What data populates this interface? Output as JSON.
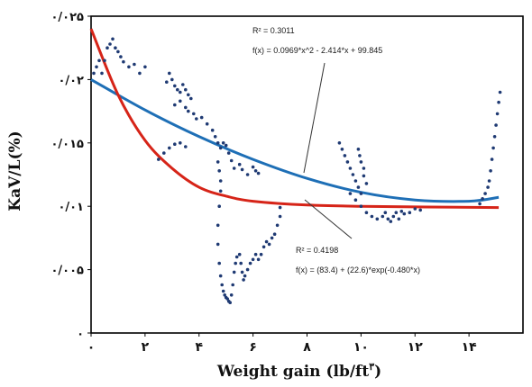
{
  "chart_data": {
    "type": "scatter",
    "xlabel_main": "Weight gain (lb/ft",
    "xlabel_sup": "۳",
    "xlabel_end": ")",
    "ylabel": "KaV/L(%)",
    "xlim": [
      0,
      16
    ],
    "ylim": [
      0,
      0.025
    ],
    "xticks": [
      {
        "value": 0,
        "label": "۰"
      },
      {
        "value": 2,
        "label": "۲"
      },
      {
        "value": 4,
        "label": "۴"
      },
      {
        "value": 6,
        "label": "۶"
      },
      {
        "value": 8,
        "label": "۸"
      },
      {
        "value": 10,
        "label": "۱۰"
      },
      {
        "value": 12,
        "label": "۱۲"
      },
      {
        "value": 14,
        "label": "۱۴"
      }
    ],
    "yticks": [
      {
        "value": 0,
        "label": "۰"
      },
      {
        "value": 0.005,
        "label": "۰/۰۰۵"
      },
      {
        "value": 0.01,
        "label": "۰/۰۱"
      },
      {
        "value": 0.015,
        "label": "۰/۰۱۵"
      },
      {
        "value": 0.02,
        "label": "۰/۰۲"
      },
      {
        "value": 0.025,
        "label": "۰/۰۲۵"
      }
    ],
    "grid": false,
    "colors": {
      "points": "#1f3a73",
      "blue_curve": "#1e6fb6",
      "red_curve": "#d62418"
    },
    "series": [
      {
        "kind": "points",
        "points": [
          [
            0.1,
            0.0205
          ],
          [
            0.2,
            0.021
          ],
          [
            0.3,
            0.0215
          ],
          [
            0.4,
            0.0205
          ],
          [
            0.5,
            0.0215
          ],
          [
            0.6,
            0.0225
          ],
          [
            0.7,
            0.0228
          ],
          [
            0.8,
            0.0232
          ],
          [
            0.9,
            0.0225
          ],
          [
            1.0,
            0.0222
          ],
          [
            1.1,
            0.0218
          ],
          [
            1.2,
            0.0214
          ],
          [
            1.4,
            0.021
          ],
          [
            1.6,
            0.0212
          ],
          [
            1.8,
            0.0205
          ],
          [
            2.0,
            0.021
          ],
          [
            2.8,
            0.0198
          ],
          [
            2.9,
            0.0205
          ],
          [
            3.0,
            0.02
          ],
          [
            3.1,
            0.0195
          ],
          [
            3.2,
            0.0192
          ],
          [
            3.3,
            0.019
          ],
          [
            3.4,
            0.0196
          ],
          [
            3.5,
            0.0192
          ],
          [
            3.6,
            0.0188
          ],
          [
            3.7,
            0.0185
          ],
          [
            3.1,
            0.018
          ],
          [
            3.3,
            0.0183
          ],
          [
            3.5,
            0.0178
          ],
          [
            3.6,
            0.0175
          ],
          [
            3.8,
            0.0173
          ],
          [
            3.9,
            0.0169
          ],
          [
            2.5,
            0.0137
          ],
          [
            2.7,
            0.0142
          ],
          [
            2.9,
            0.0146
          ],
          [
            3.1,
            0.0149
          ],
          [
            3.3,
            0.015
          ],
          [
            3.5,
            0.0147
          ],
          [
            4.1,
            0.017
          ],
          [
            4.3,
            0.0165
          ],
          [
            4.5,
            0.016
          ],
          [
            4.6,
            0.0155
          ],
          [
            4.7,
            0.015
          ],
          [
            4.8,
            0.0146
          ],
          [
            4.9,
            0.015
          ],
          [
            5.0,
            0.0148
          ],
          [
            5.1,
            0.0142
          ],
          [
            5.2,
            0.0136
          ],
          [
            5.3,
            0.013
          ],
          [
            5.5,
            0.0133
          ],
          [
            5.6,
            0.0129
          ],
          [
            5.8,
            0.0125
          ],
          [
            6.0,
            0.0131
          ],
          [
            6.1,
            0.0128
          ],
          [
            6.2,
            0.0126
          ],
          [
            4.7,
            0.0135
          ],
          [
            4.75,
            0.0128
          ],
          [
            4.8,
            0.012
          ],
          [
            4.8,
            0.0112
          ],
          [
            4.75,
            0.01
          ],
          [
            4.7,
            0.0085
          ],
          [
            4.7,
            0.007
          ],
          [
            4.75,
            0.0055
          ],
          [
            4.8,
            0.0045
          ],
          [
            4.85,
            0.0038
          ],
          [
            4.9,
            0.0033
          ],
          [
            4.95,
            0.003
          ],
          [
            5.0,
            0.0028
          ],
          [
            5.05,
            0.0027
          ],
          [
            5.1,
            0.0025
          ],
          [
            5.15,
            0.0024
          ],
          [
            5.2,
            0.003
          ],
          [
            5.25,
            0.0038
          ],
          [
            5.3,
            0.0048
          ],
          [
            5.35,
            0.0055
          ],
          [
            5.4,
            0.006
          ],
          [
            5.5,
            0.0062
          ],
          [
            5.55,
            0.0055
          ],
          [
            5.6,
            0.0048
          ],
          [
            5.65,
            0.0042
          ],
          [
            5.7,
            0.0045
          ],
          [
            5.8,
            0.005
          ],
          [
            5.9,
            0.0055
          ],
          [
            6.0,
            0.0058
          ],
          [
            6.1,
            0.0062
          ],
          [
            6.2,
            0.0058
          ],
          [
            6.3,
            0.0062
          ],
          [
            6.4,
            0.0068
          ],
          [
            6.5,
            0.0072
          ],
          [
            6.6,
            0.007
          ],
          [
            6.7,
            0.0075
          ],
          [
            6.8,
            0.0078
          ],
          [
            6.9,
            0.0085
          ],
          [
            7.0,
            0.0092
          ],
          [
            7.0,
            0.0099
          ],
          [
            9.2,
            0.015
          ],
          [
            9.3,
            0.0145
          ],
          [
            9.4,
            0.014
          ],
          [
            9.5,
            0.0135
          ],
          [
            9.6,
            0.013
          ],
          [
            9.7,
            0.0125
          ],
          [
            9.8,
            0.012
          ],
          [
            9.9,
            0.0115
          ],
          [
            10.0,
            0.011
          ],
          [
            9.9,
            0.0145
          ],
          [
            9.95,
            0.014
          ],
          [
            10.0,
            0.0135
          ],
          [
            10.1,
            0.013
          ],
          [
            10.1,
            0.0124
          ],
          [
            10.2,
            0.0118
          ],
          [
            9.6,
            0.011
          ],
          [
            9.8,
            0.0105
          ],
          [
            10.0,
            0.01
          ],
          [
            10.2,
            0.0095
          ],
          [
            10.4,
            0.0092
          ],
          [
            10.6,
            0.009
          ],
          [
            10.8,
            0.0092
          ],
          [
            10.9,
            0.0095
          ],
          [
            11.0,
            0.009
          ],
          [
            11.1,
            0.0088
          ],
          [
            11.2,
            0.0092
          ],
          [
            11.3,
            0.0095
          ],
          [
            11.4,
            0.009
          ],
          [
            11.5,
            0.0096
          ],
          [
            11.6,
            0.0094
          ],
          [
            11.8,
            0.0095
          ],
          [
            12.0,
            0.0098
          ],
          [
            12.2,
            0.0097
          ],
          [
            14.4,
            0.0102
          ],
          [
            14.5,
            0.0106
          ],
          [
            14.6,
            0.011
          ],
          [
            14.7,
            0.0115
          ],
          [
            14.75,
            0.012
          ],
          [
            14.8,
            0.0128
          ],
          [
            14.85,
            0.0137
          ],
          [
            14.9,
            0.0146
          ],
          [
            14.95,
            0.0155
          ],
          [
            15.0,
            0.0164
          ],
          [
            15.05,
            0.0173
          ],
          [
            15.1,
            0.0182
          ],
          [
            15.15,
            0.019
          ]
        ]
      },
      {
        "kind": "fit",
        "equation": "f(x) = 0.0969*x^2 - 2.414*x + 99.845",
        "r2_text": "R² = 0.3011",
        "color": "#1e6fb6",
        "curve": [
          [
            0,
            0.02
          ],
          [
            2,
            0.0176
          ],
          [
            4,
            0.0155
          ],
          [
            6,
            0.0137
          ],
          [
            8,
            0.0122
          ],
          [
            10,
            0.0111
          ],
          [
            12,
            0.0105
          ],
          [
            14,
            0.0104
          ],
          [
            15.1,
            0.0107
          ]
        ]
      },
      {
        "kind": "fit",
        "equation": "f(x) = (83.4) + (22.6)*exp(-0.480*x)",
        "r2_text": "R² = 0.4198",
        "color": "#d62418",
        "curve": [
          [
            0,
            0.024
          ],
          [
            1,
            0.0188
          ],
          [
            2,
            0.0152
          ],
          [
            3,
            0.013
          ],
          [
            4,
            0.0115
          ],
          [
            5,
            0.0108
          ],
          [
            6,
            0.0104
          ],
          [
            8,
            0.0101
          ],
          [
            10,
            0.01
          ],
          [
            15.1,
            0.0099
          ]
        ]
      }
    ]
  }
}
